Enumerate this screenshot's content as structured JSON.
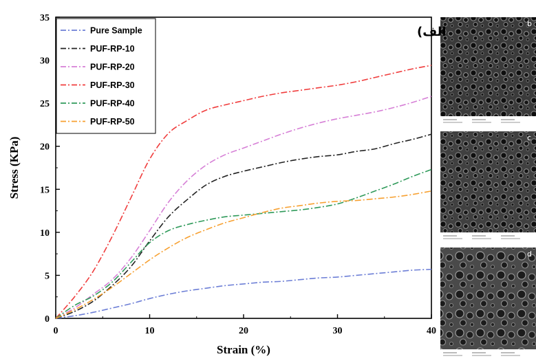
{
  "chart_data": {
    "type": "line",
    "xlabel": "Strain (%)",
    "ylabel": "Stress (KPa)",
    "xlim": [
      0,
      40
    ],
    "ylim": [
      0,
      35
    ],
    "xticks": [
      0,
      10,
      20,
      30,
      40
    ],
    "yticks": [
      0,
      5,
      10,
      15,
      20,
      25,
      30,
      35
    ],
    "annotation": "الف)",
    "legend_position": "top-left",
    "grid": false,
    "series": [
      {
        "name": "Pure Sample",
        "color": "#6c7ed6",
        "x": [
          0,
          2,
          4,
          6,
          8,
          10,
          12,
          14,
          16,
          18,
          20,
          22,
          24,
          26,
          28,
          30,
          32,
          34,
          36,
          38,
          40
        ],
        "y": [
          0,
          0.3,
          0.7,
          1.2,
          1.7,
          2.3,
          2.8,
          3.2,
          3.5,
          3.8,
          4.0,
          4.2,
          4.3,
          4.5,
          4.7,
          4.8,
          5.0,
          5.2,
          5.4,
          5.6,
          5.7
        ]
      },
      {
        "name": "PUF-RP-10",
        "color": "#222222",
        "x": [
          0,
          2,
          4,
          6,
          8,
          10,
          12,
          14,
          16,
          18,
          20,
          22,
          24,
          26,
          28,
          30,
          32,
          34,
          36,
          38,
          40
        ],
        "y": [
          0,
          0.8,
          2.0,
          3.8,
          6.0,
          9.0,
          11.8,
          13.8,
          15.5,
          16.5,
          17.1,
          17.6,
          18.1,
          18.5,
          18.8,
          19.0,
          19.4,
          19.7,
          20.3,
          20.8,
          21.4
        ]
      },
      {
        "name": "PUF-RP-20",
        "color": "#d67fd6",
        "x": [
          0,
          2,
          4,
          6,
          8,
          10,
          12,
          14,
          16,
          18,
          20,
          22,
          24,
          26,
          28,
          30,
          32,
          34,
          36,
          38,
          40
        ],
        "y": [
          0,
          1.2,
          2.8,
          4.5,
          7.0,
          10.2,
          13.5,
          16.0,
          17.8,
          19.0,
          19.8,
          20.6,
          21.4,
          22.1,
          22.7,
          23.2,
          23.6,
          24.0,
          24.5,
          25.1,
          25.8
        ]
      },
      {
        "name": "PUF-RP-30",
        "color": "#f03c3c",
        "x": [
          0,
          2,
          4,
          6,
          8,
          10,
          12,
          14,
          16,
          18,
          20,
          22,
          24,
          26,
          28,
          30,
          32,
          34,
          36,
          38,
          40
        ],
        "y": [
          0,
          2.5,
          5.5,
          9.5,
          14.0,
          18.5,
          21.5,
          23.0,
          24.2,
          24.8,
          25.3,
          25.8,
          26.2,
          26.5,
          26.8,
          27.1,
          27.5,
          28.0,
          28.5,
          29.0,
          29.4
        ]
      },
      {
        "name": "PUF-RP-40",
        "color": "#2f9a5a",
        "x": [
          0,
          2,
          4,
          6,
          8,
          10,
          12,
          14,
          16,
          18,
          20,
          22,
          24,
          26,
          28,
          30,
          32,
          34,
          36,
          38,
          40
        ],
        "y": [
          0,
          1.5,
          2.6,
          4.2,
          6.5,
          8.8,
          10.2,
          10.9,
          11.4,
          11.8,
          12.0,
          12.2,
          12.4,
          12.6,
          12.9,
          13.3,
          14.0,
          14.8,
          15.6,
          16.5,
          17.3
        ]
      },
      {
        "name": "PUF-RP-50",
        "color": "#f7a030",
        "x": [
          0,
          2,
          4,
          6,
          8,
          10,
          12,
          14,
          16,
          18,
          20,
          22,
          24,
          26,
          28,
          30,
          32,
          34,
          36,
          38,
          40
        ],
        "y": [
          0,
          1.0,
          2.2,
          3.6,
          5.2,
          6.8,
          8.2,
          9.4,
          10.3,
          11.1,
          11.7,
          12.3,
          12.8,
          13.1,
          13.4,
          13.6,
          13.7,
          13.9,
          14.1,
          14.4,
          14.8
        ]
      }
    ]
  },
  "sem_panels": [
    {
      "letter": "b",
      "tone": "#3a3a3a"
    },
    {
      "letter": "c",
      "tone": "#404040"
    },
    {
      "letter": "d",
      "tone": "#4a4a4a"
    }
  ]
}
